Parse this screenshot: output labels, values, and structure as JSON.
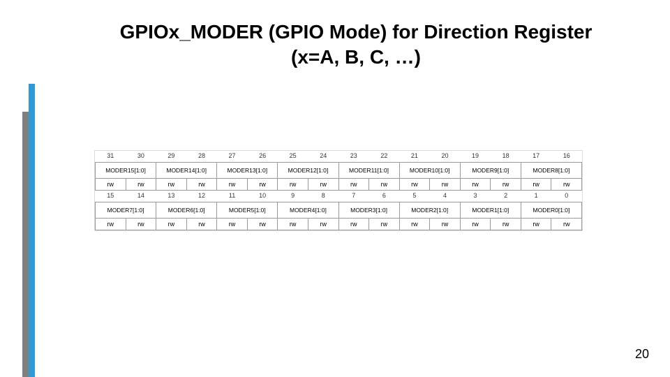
{
  "title_line1": "GPIOx_MODER (GPIO Mode) for Direction Register",
  "title_line2": "(x=A, B, C, …)",
  "page_number": "20",
  "accent": {
    "grey": "#7f7f7f",
    "blue": "#2e9bd6",
    "grey_h": 380,
    "blue_h": 420
  },
  "register": {
    "bits_hi": [
      "31",
      "30",
      "29",
      "28",
      "27",
      "26",
      "25",
      "24",
      "23",
      "22",
      "21",
      "20",
      "19",
      "18",
      "17",
      "16"
    ],
    "fields_hi": [
      "MODER15[1:0]",
      "MODER14[1:0]",
      "MODER13[1:0]",
      "MODER12[1:0]",
      "MODER11[1:0]",
      "MODER10[1:0]",
      "MODER9[1:0]",
      "MODER8[1:0]"
    ],
    "rw_hi": [
      "rw",
      "rw",
      "rw",
      "rw",
      "rw",
      "rw",
      "rw",
      "rw",
      "rw",
      "rw",
      "rw",
      "rw",
      "rw",
      "rw",
      "rw",
      "rw"
    ],
    "bits_lo": [
      "15",
      "14",
      "13",
      "12",
      "11",
      "10",
      "9",
      "8",
      "7",
      "6",
      "5",
      "4",
      "3",
      "2",
      "1",
      "0"
    ],
    "fields_lo": [
      "MODER7[1:0]",
      "MODER6[1:0]",
      "MODER5[1:0]",
      "MODER4[1:0]",
      "MODER3[1:0]",
      "MODER2[1:0]",
      "MODER1[1:0]",
      "MODER0[1:0]"
    ],
    "rw_lo": [
      "rw",
      "rw",
      "rw",
      "rw",
      "rw",
      "rw",
      "rw",
      "rw",
      "rw",
      "rw",
      "rw",
      "rw",
      "rw",
      "rw",
      "rw",
      "rw"
    ]
  }
}
